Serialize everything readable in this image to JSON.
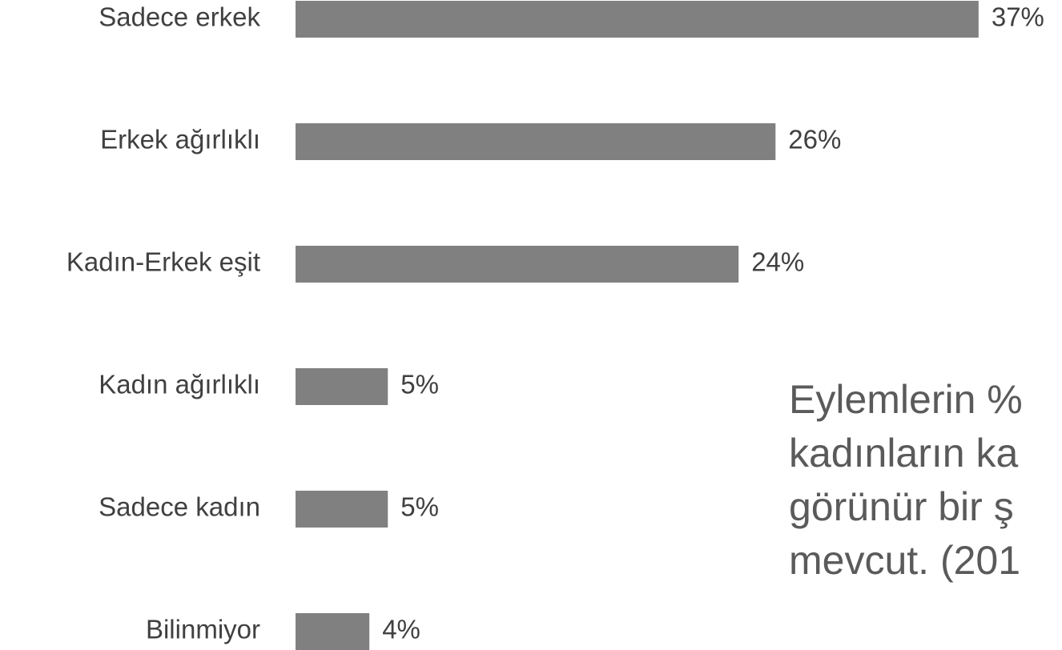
{
  "chart_data": {
    "type": "bar",
    "orientation": "horizontal",
    "categories": [
      "Sadece erkek",
      "Erkek ağırlıklı",
      "Kadın-Erkek eşit",
      "Kadın ağırlıklı",
      "Sadece kadın",
      "Bilinmiyor"
    ],
    "values": [
      37,
      26,
      24,
      5,
      5,
      4
    ],
    "value_labels": [
      "37%",
      "26%",
      "24%",
      "5%",
      "5%",
      "4%"
    ],
    "color": "#808080",
    "annotation": [
      "Eylemlerin %",
      "kadınların ka",
      "görünür bir ş",
      "mevcut. (201"
    ]
  }
}
